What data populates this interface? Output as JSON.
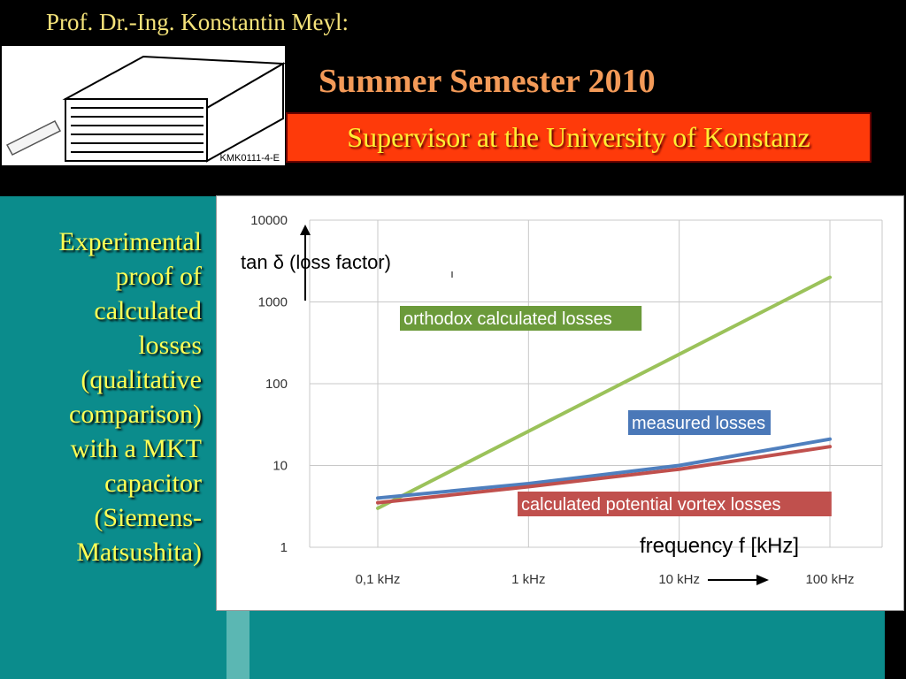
{
  "header": {
    "author": "Prof. Dr.-Ing. Konstantin Meyl:",
    "semester": "Summer Semester 2010",
    "supervisor": "Supervisor at the University of Konstanz",
    "image_code": "KMK0111-4-E"
  },
  "sidebar": {
    "lines": [
      "Experimental",
      "proof of",
      "calculated",
      "losses",
      "(qualitative",
      "comparison)",
      "with a MKT",
      "capacitor",
      "(Siemens-",
      "Matsushita)"
    ]
  },
  "colors": {
    "accent_orange": "#f39a58",
    "banner_red": "#fe3a0a",
    "banner_text": "#ffee33",
    "teal": "#0b8c8c",
    "series_green": "#9bc25a",
    "series_blue": "#4f7fbe",
    "series_red": "#c0504d"
  },
  "chart_data": {
    "type": "line",
    "y_scale": "log",
    "x_scale": "log",
    "ylim": [
      1,
      10000
    ],
    "xlim": [
      0.1,
      100
    ],
    "y_ticks": [
      "10000",
      "1000",
      "100",
      "10",
      "1"
    ],
    "x_ticks": [
      "0,1 kHz",
      "1 kHz",
      "10 kHz",
      "100 kHz"
    ],
    "ylabel": "tan δ  (loss factor)",
    "xlabel": "frequency f [kHz]",
    "grid": true,
    "series": [
      {
        "name": "orthodox calculated losses",
        "x": [
          0.1,
          100
        ],
        "y": [
          3,
          2000
        ],
        "color": "#9bc25a"
      },
      {
        "name": "measured losses",
        "x": [
          0.1,
          1,
          10,
          100
        ],
        "y": [
          4,
          6,
          10,
          21
        ],
        "color": "#4f7fbe"
      },
      {
        "name": "calculated potential vortex losses",
        "x": [
          0.1,
          1,
          10,
          100
        ],
        "y": [
          3.5,
          5.5,
          9,
          17
        ],
        "color": "#c0504d"
      }
    ]
  }
}
